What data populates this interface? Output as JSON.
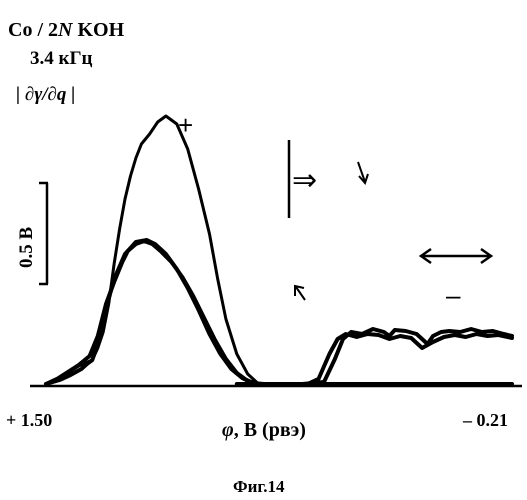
{
  "chart_data": {
    "type": "line",
    "annotations": {
      "system": "Co / 2",
      "system_italic": "N",
      "system_end": " KOH",
      "frequency": "3.4 кГц",
      "quantity": "| ∂γ/∂",
      "quantity_bold": "q",
      "quantity_end": " |",
      "plus_sign": "+",
      "minus_sign": "–",
      "arrow_double": "⇒",
      "scale_bar": "0.5 В"
    },
    "xaxis": {
      "label_symbol": "φ",
      "label_rest": ", В (рвэ)",
      "tick_left": "+ 1.50",
      "tick_right": "– 0.21",
      "range": [
        1.5,
        -0.21
      ]
    },
    "caption": "Фиг.14",
    "series": [
      {
        "points": [
          [
            1.5,
            0.0
          ],
          [
            1.46,
            0.05
          ],
          [
            1.42,
            0.11
          ],
          [
            1.38,
            0.18
          ],
          [
            1.33,
            0.24
          ],
          [
            1.31,
            0.36
          ],
          [
            1.29,
            0.52
          ],
          [
            1.27,
            0.8
          ],
          [
            1.25,
            1.2
          ],
          [
            1.23,
            1.55
          ],
          [
            1.21,
            1.85
          ],
          [
            1.19,
            2.08
          ],
          [
            1.17,
            2.26
          ],
          [
            1.15,
            2.4
          ],
          [
            1.12,
            2.5
          ],
          [
            1.09,
            2.62
          ],
          [
            1.06,
            2.68
          ],
          [
            1.02,
            2.6
          ],
          [
            0.98,
            2.35
          ],
          [
            0.94,
            1.95
          ],
          [
            0.9,
            1.5
          ],
          [
            0.87,
            1.05
          ],
          [
            0.84,
            0.65
          ],
          [
            0.8,
            0.3
          ],
          [
            0.76,
            0.1
          ],
          [
            0.72,
            0.0
          ],
          [
            0.66,
            0.0
          ],
          [
            0.6,
            0.0
          ],
          [
            0.5,
            0.0
          ],
          [
            0.4,
            0.0
          ],
          [
            0.3,
            0.0
          ],
          [
            0.2,
            0.0
          ],
          [
            0.1,
            0.0
          ],
          [
            0.0,
            0.0
          ],
          [
            -0.21,
            0.0
          ]
        ]
      },
      {
        "points": [
          [
            1.5,
            0.0
          ],
          [
            1.46,
            0.05
          ],
          [
            1.42,
            0.12
          ],
          [
            1.38,
            0.19
          ],
          [
            1.34,
            0.28
          ],
          [
            1.31,
            0.48
          ],
          [
            1.28,
            0.8
          ],
          [
            1.25,
            1.02
          ],
          [
            1.22,
            1.22
          ],
          [
            1.2,
            1.33
          ],
          [
            1.17,
            1.4
          ],
          [
            1.14,
            1.43
          ],
          [
            1.11,
            1.4
          ],
          [
            1.08,
            1.33
          ],
          [
            1.04,
            1.22
          ],
          [
            1.0,
            1.07
          ],
          [
            0.96,
            0.88
          ],
          [
            0.92,
            0.66
          ],
          [
            0.88,
            0.44
          ],
          [
            0.84,
            0.25
          ],
          [
            0.8,
            0.11
          ],
          [
            0.76,
            0.03
          ],
          [
            0.72,
            0.0
          ],
          [
            0.5,
            0.0
          ],
          [
            0.2,
            0.0
          ],
          [
            0.1,
            0.0
          ],
          [
            0.0,
            0.0
          ],
          [
            -0.21,
            0.0
          ]
        ]
      },
      {
        "points": [
          [
            1.5,
            0.0
          ],
          [
            1.45,
            0.04
          ],
          [
            1.41,
            0.09
          ],
          [
            1.37,
            0.15
          ],
          [
            1.35,
            0.2
          ],
          [
            1.33,
            0.24
          ],
          [
            1.31,
            0.4
          ],
          [
            1.28,
            0.75
          ],
          [
            1.25,
            1.05
          ],
          [
            1.21,
            1.3
          ],
          [
            1.17,
            1.42
          ],
          [
            1.13,
            1.44
          ],
          [
            1.1,
            1.4
          ],
          [
            1.06,
            1.3
          ],
          [
            1.02,
            1.15
          ],
          [
            0.98,
            0.96
          ],
          [
            0.94,
            0.74
          ],
          [
            0.9,
            0.5
          ],
          [
            0.86,
            0.3
          ],
          [
            0.82,
            0.15
          ],
          [
            0.78,
            0.06
          ],
          [
            0.74,
            0.01
          ],
          [
            0.7,
            0.0
          ],
          [
            0.56,
            0.0
          ],
          [
            0.48,
            0.02
          ],
          [
            0.44,
            0.25
          ],
          [
            0.41,
            0.45
          ],
          [
            0.38,
            0.52
          ],
          [
            0.34,
            0.5
          ],
          [
            0.3,
            0.55
          ],
          [
            0.26,
            0.52
          ],
          [
            0.24,
            0.48
          ],
          [
            0.22,
            0.54
          ],
          [
            0.18,
            0.53
          ],
          [
            0.14,
            0.5
          ],
          [
            0.1,
            0.4
          ],
          [
            0.08,
            0.48
          ],
          [
            0.05,
            0.52
          ],
          [
            0.02,
            0.53
          ],
          [
            -0.02,
            0.52
          ],
          [
            -0.06,
            0.55
          ],
          [
            -0.1,
            0.52
          ],
          [
            -0.14,
            0.53
          ],
          [
            -0.18,
            0.5
          ],
          [
            -0.21,
            0.48
          ]
        ]
      },
      {
        "points": [
          [
            0.8,
            0.0
          ],
          [
            0.7,
            0.0
          ],
          [
            0.62,
            0.0
          ],
          [
            0.54,
            0.0
          ],
          [
            0.5,
            0.05
          ],
          [
            0.46,
            0.3
          ],
          [
            0.43,
            0.45
          ],
          [
            0.4,
            0.5
          ],
          [
            0.36,
            0.47
          ],
          [
            0.32,
            0.5
          ],
          [
            0.28,
            0.49
          ],
          [
            0.24,
            0.45
          ],
          [
            0.2,
            0.48
          ],
          [
            0.16,
            0.46
          ],
          [
            0.12,
            0.36
          ],
          [
            0.08,
            0.42
          ],
          [
            0.04,
            0.47
          ],
          [
            0.0,
            0.49
          ],
          [
            -0.04,
            0.47
          ],
          [
            -0.08,
            0.5
          ],
          [
            -0.12,
            0.48
          ],
          [
            -0.16,
            0.49
          ],
          [
            -0.21,
            0.46
          ]
        ]
      }
    ]
  }
}
